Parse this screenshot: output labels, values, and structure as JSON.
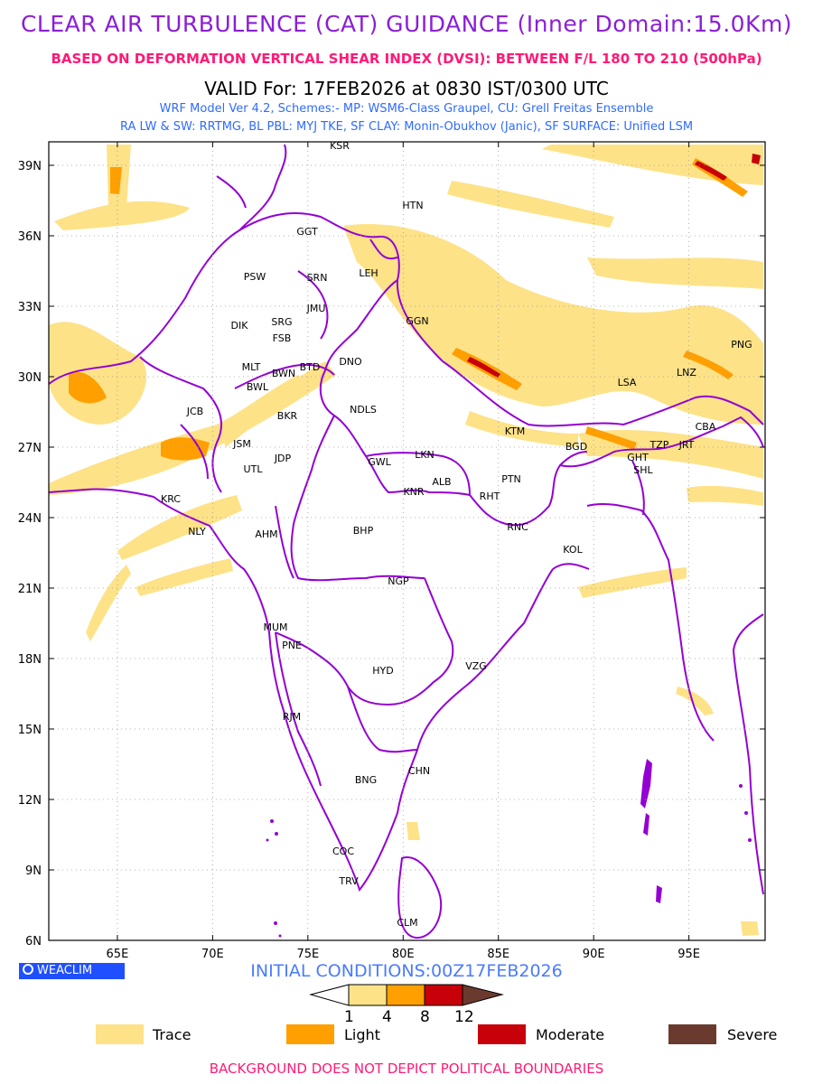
{
  "header": {
    "title": "CLEAR AIR TURBULENCE (CAT) GUIDANCE (Inner Domain:15.0Km)",
    "subtitle": "BASED ON DEFORMATION VERTICAL SHEAR INDEX (DVSI): BETWEEN F/L 180 TO 210 (500hPa)",
    "valid": "VALID For: 17FEB2026 at 0830 IST/0300 UTC",
    "model_line1": "WRF Model Ver 4.2, Schemes:- MP: WSM6-Class Graupel, CU: Grell Freitas Ensemble",
    "model_line2": "RA LW & SW: RRTMG, BL PBL: MYJ TKE, SF CLAY: Monin-Obukhov (Janic), SF SURFACE: Unified LSM"
  },
  "map": {
    "lat_ticks": [
      "39N",
      "36N",
      "33N",
      "30N",
      "27N",
      "24N",
      "21N",
      "18N",
      "15N",
      "12N",
      "9N",
      "6N"
    ],
    "lon_ticks": [
      "65E",
      "70E",
      "75E",
      "80E",
      "85E",
      "90E",
      "95E"
    ],
    "stations": [
      {
        "code": "KSR"
      },
      {
        "code": "HTN"
      },
      {
        "code": "GGT"
      },
      {
        "code": "PSW"
      },
      {
        "code": "SRN"
      },
      {
        "code": "LEH"
      },
      {
        "code": "JMU"
      },
      {
        "code": "GGN"
      },
      {
        "code": "DIK"
      },
      {
        "code": "SRG"
      },
      {
        "code": "FSB"
      },
      {
        "code": "MLT"
      },
      {
        "code": "BWN"
      },
      {
        "code": "BTD"
      },
      {
        "code": "DNO"
      },
      {
        "code": "BWL"
      },
      {
        "code": "PNG"
      },
      {
        "code": "LSA"
      },
      {
        "code": "LNZ"
      },
      {
        "code": "JCB"
      },
      {
        "code": "BKR"
      },
      {
        "code": "NDLS"
      },
      {
        "code": "KTM"
      },
      {
        "code": "CBA"
      },
      {
        "code": "JSM"
      },
      {
        "code": "BGD"
      },
      {
        "code": "TZP"
      },
      {
        "code": "JRT"
      },
      {
        "code": "LKN"
      },
      {
        "code": "GHT"
      },
      {
        "code": "JDP"
      },
      {
        "code": "GWL"
      },
      {
        "code": "SHL"
      },
      {
        "code": "UTL"
      },
      {
        "code": "ALB"
      },
      {
        "code": "PTN"
      },
      {
        "code": "KNR"
      },
      {
        "code": "RHT"
      },
      {
        "code": "KRC"
      },
      {
        "code": "NLY"
      },
      {
        "code": "AHM"
      },
      {
        "code": "BHP"
      },
      {
        "code": "RNC"
      },
      {
        "code": "KOL"
      },
      {
        "code": "NGP"
      },
      {
        "code": "MUM"
      },
      {
        "code": "PNE"
      },
      {
        "code": "HYD"
      },
      {
        "code": "VZG"
      },
      {
        "code": "RJM"
      },
      {
        "code": "CHN"
      },
      {
        "code": "BNG"
      },
      {
        "code": "COC"
      },
      {
        "code": "TRV"
      },
      {
        "code": "CLM"
      }
    ]
  },
  "branding": {
    "label": "WEACLIM"
  },
  "initial_conditions": "INITIAL CONDITIONS:00Z17FEB2026",
  "colorbar": {
    "ticks": [
      "1",
      "4",
      "8",
      "12"
    ],
    "colors": [
      "#ffffff",
      "#fde288",
      "#ff9f00",
      "#c8000a",
      "#6b3a2e"
    ]
  },
  "legend": [
    {
      "label": "Trace",
      "color": "#fde288"
    },
    {
      "label": "Light",
      "color": "#ff9f00"
    },
    {
      "label": "Moderate",
      "color": "#c8000a"
    },
    {
      "label": "Severe",
      "color": "#6b3a2e"
    }
  ],
  "footer": "BACKGROUND DOES NOT DEPICT POLITICAL BOUNDARIES",
  "colors": {
    "boundary": "#9400d3",
    "title": "#8b1fd6",
    "subtitle": "#ff1a75",
    "model_text": "#2f6bff"
  }
}
